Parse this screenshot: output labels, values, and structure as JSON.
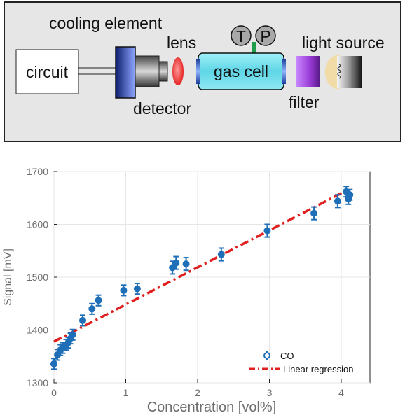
{
  "diagram": {
    "labels": {
      "cooling_element": "cooling element",
      "lens": "lens",
      "light_source": "light source",
      "circuit": "circuit",
      "gas_cell": "gas cell",
      "detector": "detector",
      "filter": "filter",
      "temp_sensor": "T",
      "pressure_sensor": "P"
    }
  },
  "chart_data": {
    "type": "scatter",
    "xlabel": "Concentration [vol%]",
    "ylabel": "Signal [mV]",
    "xlim": [
      0,
      4.4
    ],
    "ylim": [
      1300,
      1700
    ],
    "x_ticks": [
      0,
      1,
      2,
      3,
      4
    ],
    "y_ticks": [
      1300,
      1400,
      1500,
      1600,
      1700
    ],
    "x_tick_labels": [
      "0",
      "1",
      "2",
      "3",
      "4"
    ],
    "y_tick_labels": [
      "1300",
      "1400",
      "1500",
      "1600",
      "1700"
    ],
    "legend_position": "bottom-right",
    "legend": {
      "points": "CO",
      "fit": "Linear regression"
    },
    "series": [
      {
        "kind": "errorbar",
        "color": "#1f6fb8",
        "points": [
          {
            "x": 0.0,
            "y": 1336,
            "err": 10
          },
          {
            "x": 0.05,
            "y": 1353,
            "err": 10
          },
          {
            "x": 0.09,
            "y": 1362,
            "err": 10
          },
          {
            "x": 0.12,
            "y": 1366,
            "err": 10
          },
          {
            "x": 0.17,
            "y": 1372,
            "err": 10
          },
          {
            "x": 0.2,
            "y": 1376,
            "err": 10
          },
          {
            "x": 0.23,
            "y": 1384,
            "err": 10
          },
          {
            "x": 0.26,
            "y": 1391,
            "err": 10
          },
          {
            "x": 0.4,
            "y": 1418,
            "err": 10
          },
          {
            "x": 0.53,
            "y": 1440,
            "err": 10
          },
          {
            "x": 0.62,
            "y": 1456,
            "err": 10
          },
          {
            "x": 0.97,
            "y": 1475,
            "err": 10
          },
          {
            "x": 1.16,
            "y": 1478,
            "err": 10
          },
          {
            "x": 1.65,
            "y": 1518,
            "err": 12
          },
          {
            "x": 1.7,
            "y": 1527,
            "err": 12
          },
          {
            "x": 1.84,
            "y": 1525,
            "err": 12
          },
          {
            "x": 2.33,
            "y": 1543,
            "err": 12
          },
          {
            "x": 2.97,
            "y": 1588,
            "err": 12
          },
          {
            "x": 3.62,
            "y": 1621,
            "err": 12
          },
          {
            "x": 3.95,
            "y": 1644,
            "err": 12
          },
          {
            "x": 4.07,
            "y": 1662,
            "err": 10
          },
          {
            "x": 4.1,
            "y": 1648,
            "err": 10
          },
          {
            "x": 4.12,
            "y": 1656,
            "err": 10
          }
        ]
      },
      {
        "kind": "line",
        "color": "#e02020",
        "dash": "dash-dot",
        "x": [
          0.0,
          4.1
        ],
        "y": [
          1378,
          1666
        ]
      }
    ]
  }
}
